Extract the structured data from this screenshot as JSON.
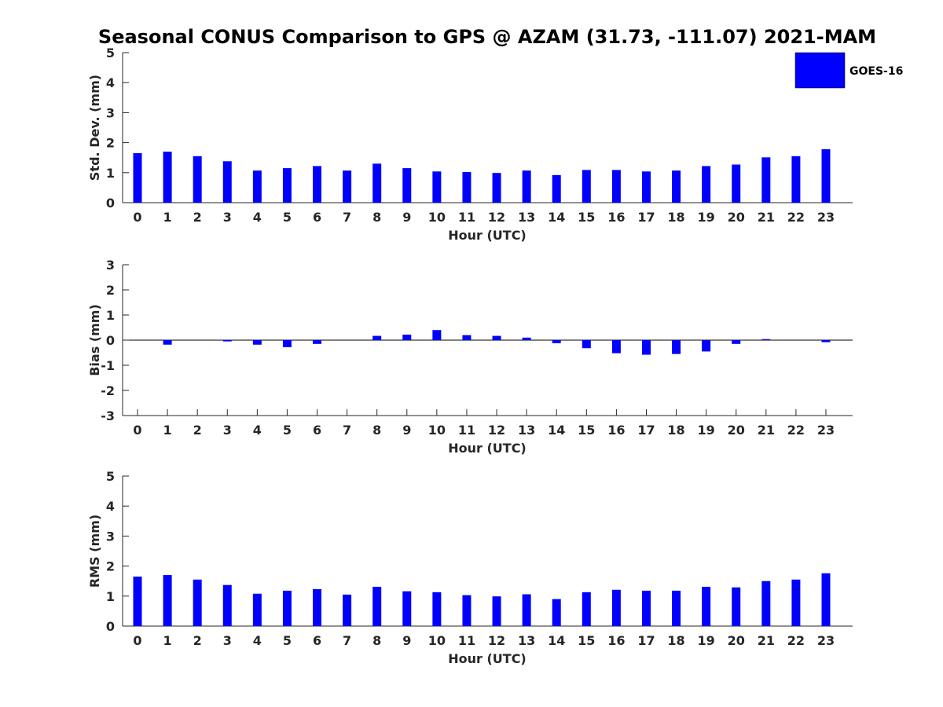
{
  "chart_data": {
    "type": "bar",
    "title": "Seasonal CONUS Comparison to GPS @ AZAM (31.73, -111.07) 2021-MAM",
    "legend": {
      "label": "GOES-16",
      "color": "#0000ff",
      "placement": "top-right"
    },
    "categories": [
      "0",
      "1",
      "2",
      "3",
      "4",
      "5",
      "6",
      "7",
      "8",
      "9",
      "10",
      "11",
      "12",
      "13",
      "14",
      "15",
      "16",
      "17",
      "18",
      "19",
      "20",
      "21",
      "22",
      "23"
    ],
    "panels": [
      {
        "id": "std",
        "ylabel": "Std. Dev. (mm)",
        "xlabel": "Hour (UTC)",
        "ylim": [
          0,
          5
        ],
        "yticks": [
          0,
          1,
          2,
          3,
          4,
          5
        ],
        "series": [
          {
            "name": "GOES-16",
            "values": [
              1.65,
              1.7,
              1.55,
              1.38,
              1.07,
              1.15,
              1.22,
              1.07,
              1.3,
              1.15,
              1.04,
              1.02,
              0.99,
              1.07,
              0.92,
              1.09,
              1.09,
              1.04,
              1.07,
              1.22,
              1.27,
              1.51,
              1.55,
              1.78
            ]
          }
        ]
      },
      {
        "id": "bias",
        "ylabel": "Bias (mm)",
        "xlabel": "Hour (UTC)",
        "ylim": [
          -3,
          3
        ],
        "yticks": [
          -3,
          -2,
          -1,
          0,
          1,
          2,
          3
        ],
        "series": [
          {
            "name": "GOES-16",
            "values": [
              0.0,
              -0.18,
              0.0,
              -0.05,
              -0.18,
              -0.28,
              -0.15,
              0.0,
              0.17,
              0.22,
              0.4,
              0.2,
              0.17,
              0.1,
              -0.12,
              -0.32,
              -0.52,
              -0.58,
              -0.55,
              -0.45,
              -0.15,
              0.04,
              0.0,
              -0.08
            ]
          }
        ]
      },
      {
        "id": "rms",
        "ylabel": "RMS (mm)",
        "xlabel": "Hour (UTC)",
        "ylim": [
          0,
          5
        ],
        "yticks": [
          0,
          1,
          2,
          3,
          4,
          5
        ],
        "series": [
          {
            "name": "GOES-16",
            "values": [
              1.65,
              1.7,
              1.55,
              1.37,
              1.08,
              1.18,
              1.23,
              1.05,
              1.31,
              1.16,
              1.13,
              1.03,
              0.99,
              1.06,
              0.9,
              1.13,
              1.21,
              1.18,
              1.18,
              1.31,
              1.29,
              1.5,
              1.55,
              1.76
            ]
          }
        ]
      }
    ]
  }
}
